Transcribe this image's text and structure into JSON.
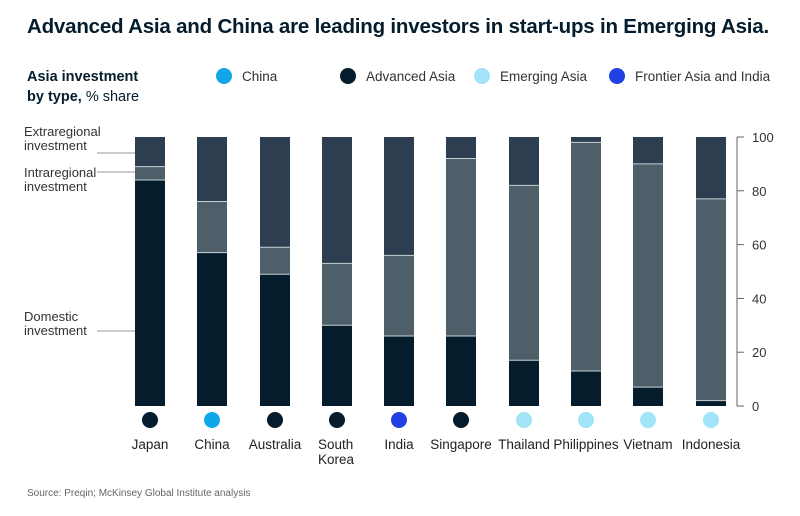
{
  "title": "Advanced Asia and China are leading investors in start-ups in Emerging Asia.",
  "yaxis_title": {
    "bold": "Asia investment",
    "line2_bold": "by type,",
    "line2_rest": " % share"
  },
  "source": "Source: Preqin; McKinsey Global Institute analysis",
  "legend": [
    {
      "label": "China",
      "color": "#10a7e8"
    },
    {
      "label": "Advanced Asia",
      "color": "#051c2c"
    },
    {
      "label": "Emerging Asia",
      "color": "#a1e4f7"
    },
    {
      "label": "Frontier Asia and India",
      "color": "#2140e3"
    }
  ],
  "segment_labels": [
    {
      "lines": [
        "Extraregional",
        "investment"
      ]
    },
    {
      "lines": [
        "Intraregional",
        "investment"
      ]
    },
    {
      "lines": [
        "Domestic",
        "investment"
      ]
    }
  ],
  "chart_data": {
    "type": "bar",
    "stacked": true,
    "categories": [
      "Japan",
      "China",
      "Australia",
      "South Korea",
      "India",
      "Singapore",
      "Thailand",
      "Philippines",
      "Vietnam",
      "Indonesia"
    ],
    "category_groups": [
      "Advanced Asia",
      "China",
      "Advanced Asia",
      "Advanced Asia",
      "Frontier Asia and India",
      "Advanced Asia",
      "Emerging Asia",
      "Emerging Asia",
      "Emerging Asia",
      "Emerging Asia"
    ],
    "series": [
      {
        "name": "Domestic investment",
        "color": "#051c2c",
        "values": [
          84,
          57,
          49,
          30,
          26,
          26,
          17,
          13,
          7,
          2
        ]
      },
      {
        "name": "Intraregional investment",
        "color": "#4f5f69",
        "values": [
          5,
          19,
          10,
          23,
          30,
          66,
          65,
          85,
          83,
          75
        ]
      },
      {
        "name": "Extraregional investment",
        "color": "#2c3e50",
        "values": [
          11,
          24,
          41,
          47,
          44,
          8,
          18,
          2,
          10,
          23
        ]
      }
    ],
    "ylim": [
      0,
      100
    ],
    "yticks": [
      0,
      20,
      40,
      60,
      80,
      100
    ],
    "ylabel": "Asia investment by type, % share",
    "grid": false
  }
}
